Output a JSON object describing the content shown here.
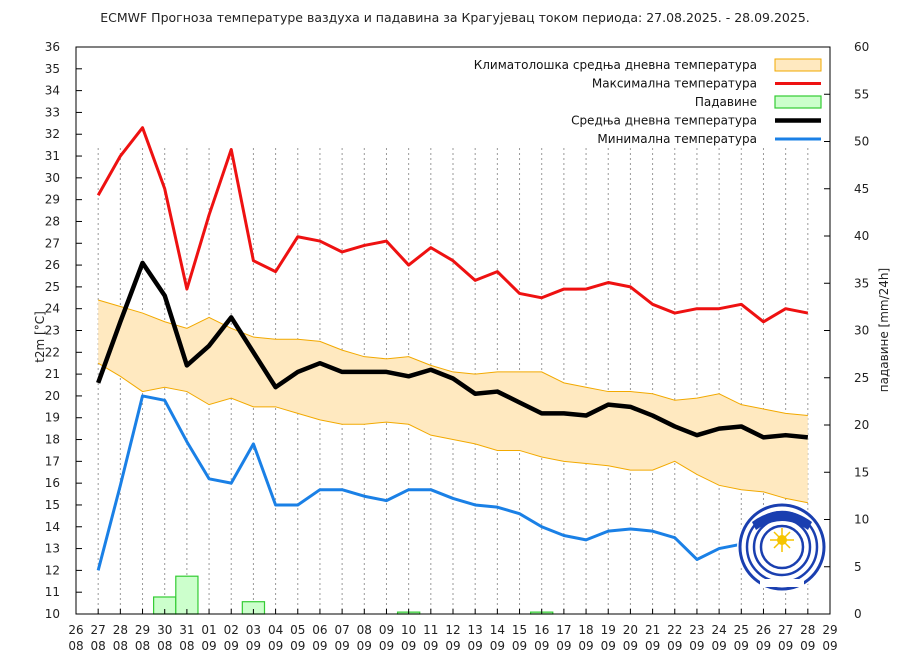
{
  "chart_data": {
    "type": "line",
    "title": "ECMWF Прогноза температуре ваздуха и падавина за Крагујевац током периода: 27.08.2025. - 28.09.2025.",
    "ylabel_left": "t2m [°C]",
    "ylabel_right": "падавине [mm/24h]",
    "ylim_left": [
      10,
      36
    ],
    "ylim_right": [
      0,
      60
    ],
    "xlim_days": [
      0,
      34
    ],
    "x_tick_labels": [
      {
        "day": "26",
        "month": "08"
      },
      {
        "day": "27",
        "month": "08"
      },
      {
        "day": "28",
        "month": "08"
      },
      {
        "day": "29",
        "month": "08"
      },
      {
        "day": "30",
        "month": "08"
      },
      {
        "day": "31",
        "month": "08"
      },
      {
        "day": "01",
        "month": "09"
      },
      {
        "day": "02",
        "month": "09"
      },
      {
        "day": "03",
        "month": "09"
      },
      {
        "day": "04",
        "month": "09"
      },
      {
        "day": "05",
        "month": "09"
      },
      {
        "day": "06",
        "month": "09"
      },
      {
        "day": "07",
        "month": "09"
      },
      {
        "day": "08",
        "month": "09"
      },
      {
        "day": "09",
        "month": "09"
      },
      {
        "day": "10",
        "month": "09"
      },
      {
        "day": "11",
        "month": "09"
      },
      {
        "day": "12",
        "month": "09"
      },
      {
        "day": "13",
        "month": "09"
      },
      {
        "day": "14",
        "month": "09"
      },
      {
        "day": "15",
        "month": "09"
      },
      {
        "day": "16",
        "month": "09"
      },
      {
        "day": "17",
        "month": "09"
      },
      {
        "day": "18",
        "month": "09"
      },
      {
        "day": "19",
        "month": "09"
      },
      {
        "day": "20",
        "month": "09"
      },
      {
        "day": "21",
        "month": "09"
      },
      {
        "day": "22",
        "month": "09"
      },
      {
        "day": "23",
        "month": "09"
      },
      {
        "day": "24",
        "month": "09"
      },
      {
        "day": "25",
        "month": "09"
      },
      {
        "day": "26",
        "month": "09"
      },
      {
        "day": "27",
        "month": "09"
      },
      {
        "day": "28",
        "month": "09"
      },
      {
        "day": "29",
        "month": "09"
      }
    ],
    "y_ticks_left": [
      10,
      11,
      12,
      13,
      14,
      15,
      16,
      17,
      18,
      19,
      20,
      21,
      22,
      23,
      24,
      25,
      26,
      27,
      28,
      29,
      30,
      31,
      32,
      33,
      34,
      35,
      36
    ],
    "y_ticks_right": [
      0,
      5,
      10,
      15,
      20,
      25,
      30,
      35,
      40,
      45,
      50,
      55,
      60
    ],
    "grid_x_dotted": true,
    "legend_position": "top-right",
    "legend": [
      {
        "key": "clim",
        "label": "Климатолошка средња дневна температура",
        "style": "fill",
        "color": "#ffe9c0",
        "border": "#f2a900"
      },
      {
        "key": "max",
        "label": "Максимална температура",
        "style": "line",
        "color": "#ee1111"
      },
      {
        "key": "precip",
        "label": "Падавине",
        "style": "bar",
        "color": "#ccffcc",
        "border": "#33cc33"
      },
      {
        "key": "mean",
        "label": "Средња дневна температура",
        "style": "line",
        "color": "#000000"
      },
      {
        "key": "min",
        "label": "Минимална температура",
        "style": "line",
        "color": "#1a80e6"
      }
    ],
    "series": {
      "clim_upper": {
        "x": [
          1,
          2,
          3,
          4,
          5,
          6,
          7,
          8,
          9,
          10,
          11,
          12,
          13,
          14,
          15,
          16,
          17,
          18,
          19,
          20,
          21,
          22,
          23,
          24,
          25,
          26,
          27,
          28,
          29,
          30,
          31,
          32,
          33
        ],
        "values": [
          24.4,
          24.1,
          23.8,
          23.4,
          23.1,
          23.6,
          23.1,
          22.7,
          22.6,
          22.6,
          22.5,
          22.1,
          21.8,
          21.7,
          21.8,
          21.4,
          21.1,
          21.0,
          21.1,
          21.1,
          21.1,
          20.6,
          20.4,
          20.2,
          20.2,
          20.1,
          19.8,
          19.9,
          20.1,
          19.6,
          19.4,
          19.2,
          19.1
        ]
      },
      "clim_lower": {
        "x": [
          1,
          2,
          3,
          4,
          5,
          6,
          7,
          8,
          9,
          10,
          11,
          12,
          13,
          14,
          15,
          16,
          17,
          18,
          19,
          20,
          21,
          22,
          23,
          24,
          25,
          26,
          27,
          28,
          29,
          30,
          31,
          32,
          33
        ],
        "values": [
          21.5,
          20.9,
          20.2,
          20.4,
          20.2,
          19.6,
          19.9,
          19.5,
          19.5,
          19.2,
          18.9,
          18.7,
          18.7,
          18.8,
          18.7,
          18.2,
          18.0,
          17.8,
          17.5,
          17.5,
          17.2,
          17.0,
          16.9,
          16.8,
          16.6,
          16.6,
          17.0,
          16.4,
          15.9,
          15.7,
          15.6,
          15.3,
          15.1
        ]
      },
      "max": {
        "x": [
          1,
          2,
          3,
          4,
          5,
          6,
          7,
          8,
          9,
          10,
          11,
          12,
          13,
          14,
          15,
          16,
          17,
          18,
          19,
          20,
          21,
          22,
          23,
          24,
          25,
          26,
          27,
          28,
          29,
          30,
          31,
          32,
          33
        ],
        "values": [
          29.2,
          31.0,
          32.3,
          29.5,
          24.9,
          28.3,
          31.3,
          26.2,
          25.7,
          27.3,
          27.1,
          26.6,
          26.9,
          27.1,
          26.0,
          26.8,
          26.2,
          25.3,
          25.7,
          24.7,
          24.5,
          24.9,
          24.9,
          25.2,
          25.0,
          24.2,
          23.8,
          24.0,
          24.0,
          24.2,
          23.4,
          24.0,
          23.8
        ]
      },
      "mean": {
        "x": [
          1,
          2,
          3,
          4,
          5,
          6,
          7,
          8,
          9,
          10,
          11,
          12,
          13,
          14,
          15,
          16,
          17,
          18,
          19,
          20,
          21,
          22,
          23,
          24,
          25,
          26,
          27,
          28,
          29,
          30,
          31,
          32,
          33
        ],
        "values": [
          20.6,
          23.4,
          26.1,
          24.6,
          21.4,
          22.3,
          23.6,
          22.0,
          20.4,
          21.1,
          21.5,
          21.1,
          21.1,
          21.1,
          20.9,
          21.2,
          20.8,
          20.1,
          20.2,
          19.7,
          19.2,
          19.2,
          19.1,
          19.6,
          19.5,
          19.1,
          18.6,
          18.2,
          18.5,
          18.6,
          18.1,
          18.2,
          18.1
        ]
      },
      "min": {
        "x": [
          1,
          2,
          3,
          4,
          5,
          6,
          7,
          8,
          9,
          10,
          11,
          12,
          13,
          14,
          15,
          16,
          17,
          18,
          19,
          20,
          21,
          22,
          23,
          24,
          25,
          26,
          27,
          28,
          29,
          30,
          31,
          32,
          33
        ],
        "values": [
          12.0,
          15.9,
          20.0,
          19.8,
          17.9,
          16.2,
          16.0,
          17.8,
          15.0,
          15.0,
          15.7,
          15.7,
          15.4,
          15.2,
          15.7,
          15.7,
          15.3,
          15.0,
          14.9,
          14.6,
          14.0,
          13.6,
          13.4,
          13.8,
          13.9,
          13.8,
          13.5,
          12.5,
          13.0,
          13.2,
          13.1,
          12.7,
          12.5
        ]
      },
      "precip": {
        "x": [
          3,
          4,
          5,
          6,
          7,
          8,
          9,
          10,
          11,
          12,
          13,
          14,
          15,
          16,
          17,
          18,
          19,
          20,
          21,
          22,
          23,
          24,
          25,
          26,
          27,
          28,
          29,
          30,
          31,
          32,
          33
        ],
        "values": [
          0,
          1.8,
          4.0,
          0,
          0,
          1.3,
          0,
          0,
          0,
          0,
          0,
          0,
          0.2,
          0,
          0,
          0,
          0,
          0,
          0.2,
          0,
          0,
          0,
          0,
          0,
          0,
          0,
          0,
          0,
          0,
          0,
          0
        ]
      }
    }
  }
}
